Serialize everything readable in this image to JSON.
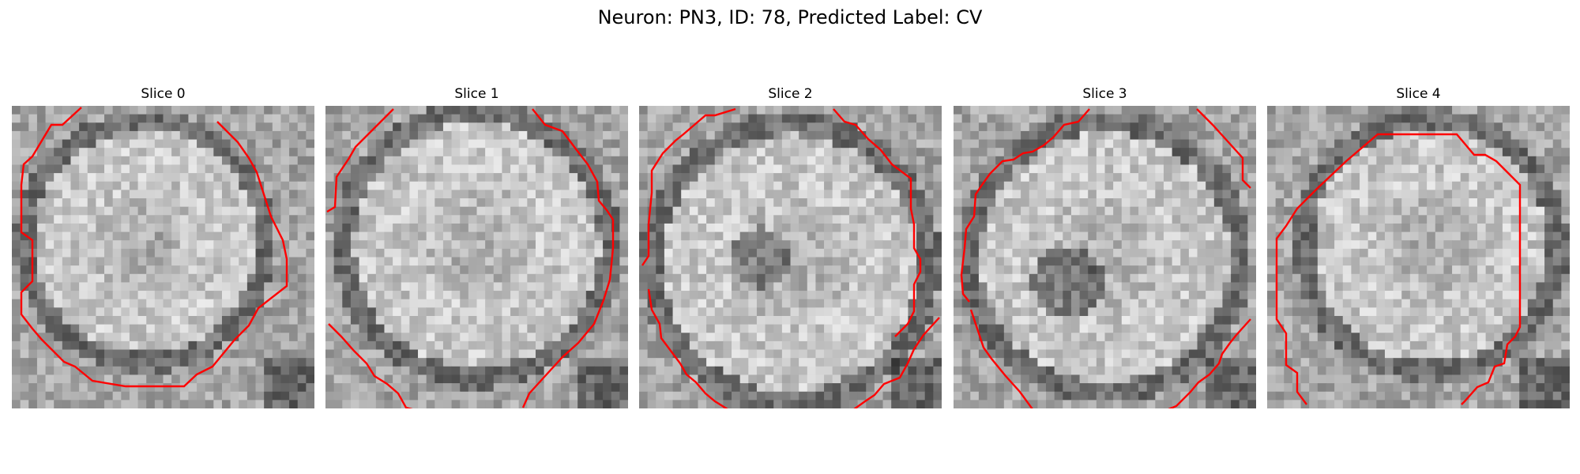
{
  "figure": {
    "title": "Neuron: PN3, ID: 78, Predicted Label: CV"
  },
  "panels": [
    {
      "title": "Slice 0",
      "seed": 11
    },
    {
      "title": "Slice 1",
      "seed": 23
    },
    {
      "title": "Slice 2",
      "seed": 37
    },
    {
      "title": "Slice 3",
      "seed": 41
    },
    {
      "title": "Slice 4",
      "seed": 59
    }
  ],
  "colors": {
    "background": "#ffffff",
    "contour": "#ff0000",
    "image_colormap": "grayscale"
  }
}
